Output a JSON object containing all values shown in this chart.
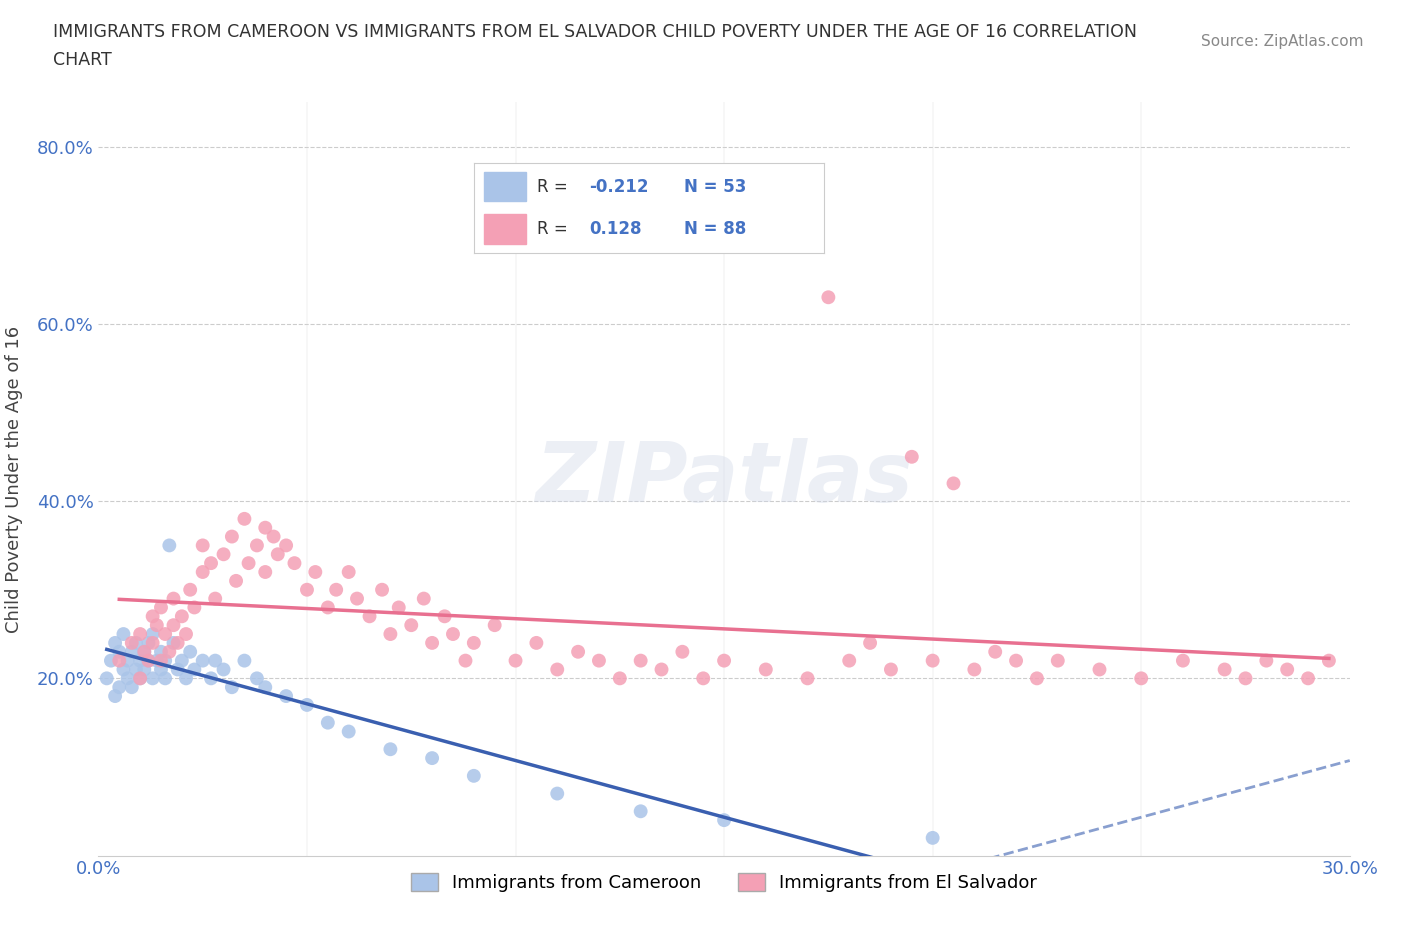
{
  "title": "IMMIGRANTS FROM CAMEROON VS IMMIGRANTS FROM EL SALVADOR CHILD POVERTY UNDER THE AGE OF 16 CORRELATION\nCHART",
  "source_text": "Source: ZipAtlas.com",
  "ylabel": "Child Poverty Under the Age of 16",
  "xlim": [
    0.0,
    0.3
  ],
  "ylim": [
    0.0,
    0.85
  ],
  "cameroon_color": "#aac4e8",
  "salvador_color": "#f4a0b5",
  "cameroon_line_color": "#3a5fb0",
  "salvador_line_color": "#e87090",
  "R_cameroon": -0.212,
  "N_cameroon": 53,
  "R_salvador": 0.128,
  "N_salvador": 88,
  "legend_label_cameroon": "Immigrants from Cameroon",
  "legend_label_salvador": "Immigrants from El Salvador",
  "background_color": "#ffffff",
  "cameroon_scatter_x": [
    0.002,
    0.003,
    0.004,
    0.004,
    0.005,
    0.005,
    0.006,
    0.006,
    0.007,
    0.007,
    0.008,
    0.008,
    0.009,
    0.009,
    0.01,
    0.01,
    0.011,
    0.011,
    0.012,
    0.012,
    0.013,
    0.013,
    0.014,
    0.015,
    0.015,
    0.016,
    0.016,
    0.017,
    0.018,
    0.019,
    0.02,
    0.021,
    0.022,
    0.023,
    0.025,
    0.027,
    0.028,
    0.03,
    0.032,
    0.035,
    0.038,
    0.04,
    0.045,
    0.05,
    0.055,
    0.06,
    0.07,
    0.08,
    0.09,
    0.11,
    0.13,
    0.15,
    0.2
  ],
  "cameroon_scatter_y": [
    0.2,
    0.22,
    0.18,
    0.24,
    0.23,
    0.19,
    0.21,
    0.25,
    0.2,
    0.22,
    0.19,
    0.23,
    0.21,
    0.24,
    0.22,
    0.2,
    0.23,
    0.21,
    0.22,
    0.24,
    0.2,
    0.25,
    0.22,
    0.23,
    0.21,
    0.2,
    0.22,
    0.35,
    0.24,
    0.21,
    0.22,
    0.2,
    0.23,
    0.21,
    0.22,
    0.2,
    0.22,
    0.21,
    0.19,
    0.22,
    0.2,
    0.19,
    0.18,
    0.17,
    0.15,
    0.14,
    0.12,
    0.11,
    0.09,
    0.07,
    0.05,
    0.04,
    0.02
  ],
  "salvador_scatter_x": [
    0.005,
    0.008,
    0.01,
    0.01,
    0.011,
    0.012,
    0.013,
    0.013,
    0.014,
    0.015,
    0.015,
    0.016,
    0.017,
    0.018,
    0.018,
    0.019,
    0.02,
    0.021,
    0.022,
    0.023,
    0.025,
    0.025,
    0.027,
    0.028,
    0.03,
    0.032,
    0.033,
    0.035,
    0.036,
    0.038,
    0.04,
    0.04,
    0.042,
    0.043,
    0.045,
    0.047,
    0.05,
    0.052,
    0.055,
    0.057,
    0.06,
    0.062,
    0.065,
    0.068,
    0.07,
    0.072,
    0.075,
    0.078,
    0.08,
    0.083,
    0.085,
    0.088,
    0.09,
    0.095,
    0.1,
    0.105,
    0.11,
    0.115,
    0.12,
    0.125,
    0.13,
    0.135,
    0.14,
    0.145,
    0.15,
    0.16,
    0.17,
    0.175,
    0.18,
    0.185,
    0.19,
    0.195,
    0.2,
    0.205,
    0.21,
    0.215,
    0.22,
    0.225,
    0.23,
    0.24,
    0.25,
    0.26,
    0.27,
    0.275,
    0.28,
    0.285,
    0.29,
    0.295
  ],
  "salvador_scatter_y": [
    0.22,
    0.24,
    0.2,
    0.25,
    0.23,
    0.22,
    0.27,
    0.24,
    0.26,
    0.22,
    0.28,
    0.25,
    0.23,
    0.29,
    0.26,
    0.24,
    0.27,
    0.25,
    0.3,
    0.28,
    0.32,
    0.35,
    0.33,
    0.29,
    0.34,
    0.36,
    0.31,
    0.38,
    0.33,
    0.35,
    0.37,
    0.32,
    0.36,
    0.34,
    0.35,
    0.33,
    0.3,
    0.32,
    0.28,
    0.3,
    0.32,
    0.29,
    0.27,
    0.3,
    0.25,
    0.28,
    0.26,
    0.29,
    0.24,
    0.27,
    0.25,
    0.22,
    0.24,
    0.26,
    0.22,
    0.24,
    0.21,
    0.23,
    0.22,
    0.2,
    0.22,
    0.21,
    0.23,
    0.2,
    0.22,
    0.21,
    0.2,
    0.63,
    0.22,
    0.24,
    0.21,
    0.45,
    0.22,
    0.42,
    0.21,
    0.23,
    0.22,
    0.2,
    0.22,
    0.21,
    0.2,
    0.22,
    0.21,
    0.2,
    0.22,
    0.21,
    0.2,
    0.22
  ]
}
